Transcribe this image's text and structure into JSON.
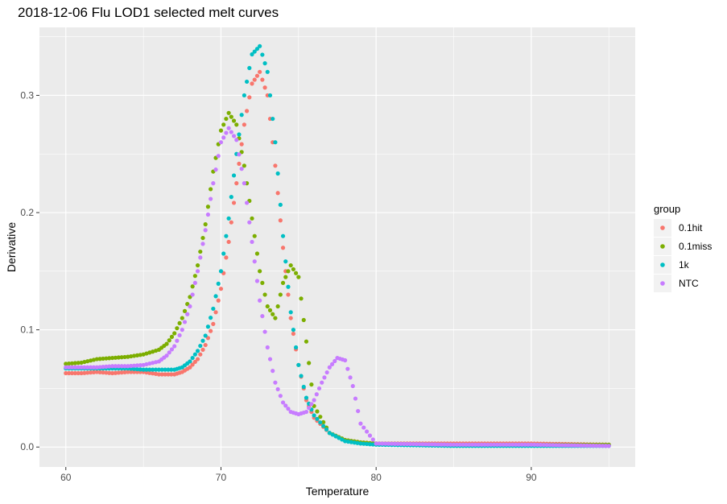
{
  "chart_data": {
    "type": "scatter",
    "title": "2018-12-06 Flu LOD1 selected melt curves",
    "xlabel": "Temperature",
    "ylabel": "Derivative",
    "xlim": [
      58.3,
      96.7
    ],
    "ylim": [
      -0.017,
      0.358
    ],
    "xticks": [
      60,
      70,
      80,
      90
    ],
    "yticks": [
      0.0,
      0.1,
      0.2,
      0.3
    ],
    "xtick_labels": [
      "60",
      "70",
      "80",
      "90"
    ],
    "ytick_labels": [
      "0.0",
      "0.1",
      "0.2",
      "0.3"
    ],
    "grid": true,
    "legend": {
      "title": "group",
      "position": "right"
    },
    "series": [
      {
        "name": "0.1hit",
        "color": "#F8766D",
        "x": [
          60,
          61,
          62,
          63,
          64,
          65,
          66,
          67,
          67.5,
          68,
          68.5,
          69,
          69.5,
          70,
          70.5,
          71,
          71.5,
          72,
          72.5,
          73,
          73.5,
          74,
          74.5,
          75,
          75.5,
          76,
          77,
          78,
          79,
          80,
          85,
          90,
          95
        ],
        "y": [
          0.063,
          0.063,
          0.064,
          0.063,
          0.064,
          0.064,
          0.062,
          0.062,
          0.064,
          0.068,
          0.075,
          0.087,
          0.105,
          0.135,
          0.175,
          0.225,
          0.275,
          0.31,
          0.32,
          0.3,
          0.24,
          0.17,
          0.11,
          0.07,
          0.04,
          0.025,
          0.012,
          0.006,
          0.004,
          0.003,
          0.003,
          0.003,
          0.002
        ]
      },
      {
        "name": "0.1miss",
        "color": "#7CAE00",
        "x": [
          60,
          61,
          62,
          63,
          64,
          65,
          66,
          66.5,
          67,
          67.5,
          68,
          68.5,
          69,
          69.5,
          70,
          70.5,
          71,
          71.5,
          72,
          72.5,
          73,
          73.5,
          74,
          74.5,
          75,
          75.5,
          76,
          77,
          78,
          79,
          80,
          85,
          90,
          95
        ],
        "y": [
          0.071,
          0.072,
          0.075,
          0.076,
          0.077,
          0.079,
          0.083,
          0.088,
          0.097,
          0.11,
          0.128,
          0.155,
          0.19,
          0.235,
          0.27,
          0.285,
          0.275,
          0.24,
          0.195,
          0.15,
          0.12,
          0.11,
          0.14,
          0.155,
          0.145,
          0.09,
          0.035,
          0.012,
          0.006,
          0.004,
          0.003,
          0.002,
          0.002,
          0.002
        ]
      },
      {
        "name": "1k",
        "color": "#00BFC4",
        "x": [
          60,
          61,
          62,
          63,
          64,
          65,
          66,
          67,
          67.5,
          68,
          68.5,
          69,
          69.5,
          70,
          70.5,
          71,
          71.5,
          72,
          72.5,
          73,
          73.5,
          74,
          74.5,
          75,
          75.5,
          76,
          77,
          78,
          79,
          80,
          85,
          90,
          95
        ],
        "y": [
          0.067,
          0.067,
          0.067,
          0.067,
          0.067,
          0.066,
          0.066,
          0.066,
          0.068,
          0.073,
          0.082,
          0.095,
          0.118,
          0.15,
          0.195,
          0.25,
          0.3,
          0.335,
          0.342,
          0.32,
          0.26,
          0.18,
          0.115,
          0.07,
          0.042,
          0.027,
          0.012,
          0.005,
          0.003,
          0.002,
          0.001,
          0.001,
          0.001
        ]
      },
      {
        "name": "NTC",
        "color": "#C77CFF",
        "x": [
          60,
          61,
          62,
          63,
          64,
          65,
          66,
          66.5,
          67,
          67.5,
          68,
          68.5,
          69,
          69.5,
          70,
          70.5,
          71,
          71.5,
          72,
          72.5,
          73,
          73.5,
          74,
          74.5,
          75,
          75.5,
          76,
          76.5,
          77,
          77.5,
          78,
          78.5,
          79,
          80,
          85,
          90,
          95
        ],
        "y": [
          0.068,
          0.068,
          0.068,
          0.069,
          0.069,
          0.07,
          0.073,
          0.078,
          0.086,
          0.1,
          0.12,
          0.15,
          0.185,
          0.225,
          0.26,
          0.272,
          0.262,
          0.225,
          0.175,
          0.125,
          0.085,
          0.055,
          0.038,
          0.03,
          0.028,
          0.03,
          0.04,
          0.055,
          0.068,
          0.076,
          0.074,
          0.052,
          0.02,
          0.003,
          0.002,
          0.002,
          0.001
        ]
      }
    ]
  }
}
